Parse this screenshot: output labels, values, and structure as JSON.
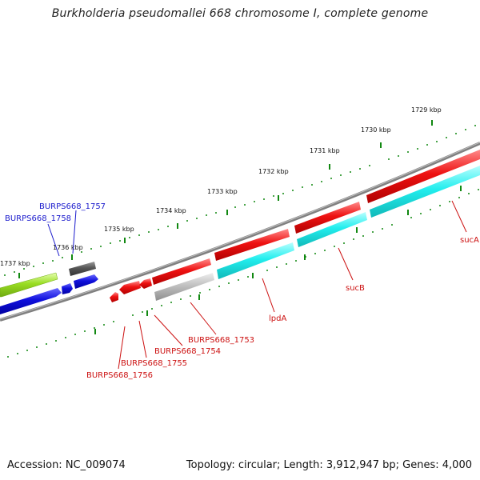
{
  "title": "Burkholderia pseudomallei 668 chromosome I, complete genome",
  "footer": {
    "accession": "Accession: NC_009074",
    "summary": "Topology: circular; Length: 3,912,947 bp; Genes: 4,000"
  },
  "ruler_labels": [
    "1737 kbp",
    "1736 kbp",
    "1735 kbp",
    "1734 kbp",
    "1733 kbp",
    "1732 kbp",
    "1731 kbp",
    "1730 kbp",
    "1729 kbp"
  ],
  "gene_labels": {
    "burps668_1757": "BURPS668_1757",
    "burps668_1758": "BURPS668_1758",
    "burps668_1753": "BURPS668_1753",
    "burps668_1754": "BURPS668_1754",
    "burps668_1755": "BURPS668_1755",
    "burps668_1756": "BURPS668_1756",
    "lpdA": "lpdA",
    "sucB": "sucB",
    "sucA": "sucA"
  },
  "colors": {
    "backbone": "#808080",
    "cds_forward": "#1010dd",
    "cds_reverse": "#ee1111",
    "feature_green": "#99dd22",
    "feature_cyan": "#22eeee",
    "feature_gray": "#555555",
    "ticks": "#118811"
  }
}
